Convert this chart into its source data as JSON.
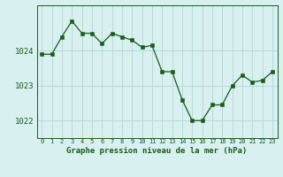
{
  "x": [
    0,
    1,
    2,
    3,
    4,
    5,
    6,
    7,
    8,
    9,
    10,
    11,
    12,
    13,
    14,
    15,
    16,
    17,
    18,
    19,
    20,
    21,
    22,
    23
  ],
  "y": [
    1023.9,
    1023.9,
    1024.4,
    1024.85,
    1024.5,
    1024.5,
    1024.2,
    1024.5,
    1024.4,
    1024.3,
    1024.1,
    1024.15,
    1023.4,
    1023.4,
    1022.6,
    1022.0,
    1022.0,
    1022.45,
    1022.45,
    1023.0,
    1023.3,
    1023.1,
    1023.15,
    1023.4
  ],
  "line_color": "#1a5c1a",
  "marker_color": "#1a5c1a",
  "bg_color": "#d8f0f0",
  "grid_color": "#b8dada",
  "title": "Graphe pression niveau de la mer (hPa)",
  "title_color": "#1a5c1a",
  "yticks": [
    1022,
    1023,
    1024
  ],
  "ylim": [
    1021.5,
    1025.3
  ],
  "xlim": [
    -0.5,
    23.5
  ],
  "xtick_labels": [
    "0",
    "1",
    "2",
    "3",
    "4",
    "5",
    "6",
    "7",
    "8",
    "9",
    "10",
    "11",
    "12",
    "13",
    "14",
    "15",
    "16",
    "17",
    "18",
    "19",
    "20",
    "21",
    "22",
    "23"
  ]
}
